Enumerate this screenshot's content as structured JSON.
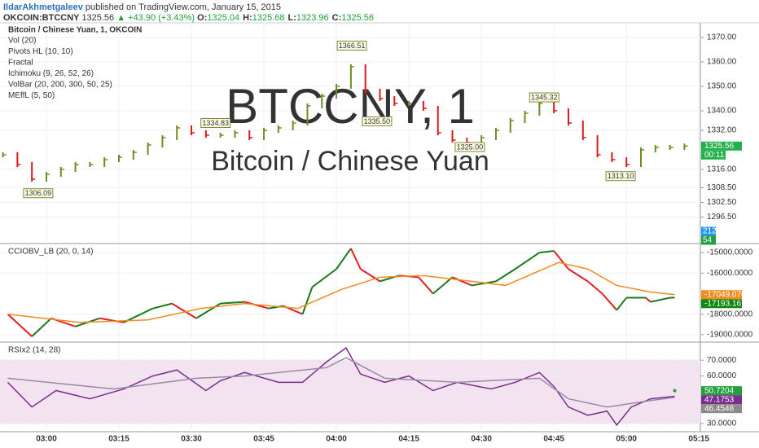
{
  "header": {
    "author": "IldarAkhmetgaleev",
    "published": "published on TradingView.com, January 15, 2015",
    "symbol": "OKCOIN:BTCCNY",
    "price": "1325.56",
    "change": "▲ +43.90 (+3.43%)",
    "ohlc": [
      {
        "label": "O:",
        "value": "1325.04"
      },
      {
        "label": "H:",
        "value": "1325.68"
      },
      {
        "label": "L:",
        "value": "1323.96"
      },
      {
        "label": "C:",
        "value": "1325.56"
      }
    ]
  },
  "chart_data": [
    {
      "type": "bar",
      "title": "Bitcoin / Chinese Yuan, 1, OKCOIN",
      "indicators": [
        "Vol (20)",
        "Pivots HL (10, 10)",
        "Fractal",
        "Ichimoku (9, 26, 52, 26)",
        "VolBar (20, 200, 300, 50, 25)",
        "MEffL (5, 50)"
      ],
      "watermark": [
        "BTCCNY, 1",
        "Bitcoin / Chinese Yuan"
      ],
      "xlim": [
        170.4,
        315.3
      ],
      "ylim": [
        1286,
        1376
      ],
      "yticks": [
        {
          "value": 1370,
          "label": "1370.00"
        },
        {
          "value": 1360,
          "label": "1360.00"
        },
        {
          "value": 1350,
          "label": "1350.00"
        },
        {
          "value": 1340,
          "label": "1340.00"
        },
        {
          "value": 1332,
          "label": "1332.00"
        },
        {
          "value": 1316,
          "label": "1316.00"
        },
        {
          "value": 1308.5,
          "label": "1308.50"
        },
        {
          "value": 1302.5,
          "label": "1302.50"
        },
        {
          "value": 1296.5,
          "label": "1296.50"
        }
      ],
      "xticks": [
        {
          "value": 180,
          "label": "03:00"
        },
        {
          "value": 195,
          "label": "03:15"
        },
        {
          "value": 210,
          "label": "03:30"
        },
        {
          "value": 225,
          "label": "03:45"
        },
        {
          "value": 240,
          "label": "04:00"
        },
        {
          "value": 255,
          "label": "04:15"
        },
        {
          "value": 270,
          "label": "04:30"
        },
        {
          "value": 285,
          "label": "04:45"
        },
        {
          "value": 300,
          "label": "05:00"
        },
        {
          "value": 315,
          "label": "05:15"
        }
      ],
      "series": [
        {
          "up_color": "#6b8e23",
          "down_color": "#d81b1b",
          "x": [
            171,
            174,
            177,
            180,
            183,
            186,
            189,
            192,
            195,
            198,
            201,
            204,
            207,
            210,
            213,
            216,
            219,
            222,
            225,
            228,
            231,
            234,
            237,
            240,
            243,
            246,
            249,
            252,
            255,
            258,
            261,
            264,
            267,
            270,
            273,
            276,
            279,
            282,
            285,
            288,
            291,
            294,
            297,
            300,
            303,
            306,
            309,
            312
          ],
          "values": [
            1322,
            1318,
            1312,
            1314,
            1316,
            1318,
            1318,
            1320,
            1321,
            1323,
            1326,
            1329,
            1333,
            1331,
            1330,
            1330,
            1331,
            1329,
            1332,
            1333,
            1335,
            1342,
            1346,
            1350,
            1358,
            1348,
            1345,
            1343,
            1343,
            1341,
            1331,
            1328,
            1327,
            1329,
            1332,
            1336,
            1339,
            1343,
            1340,
            1335,
            1329,
            1322,
            1320,
            1318,
            1324,
            1325,
            1325,
            1325.56
          ],
          "last_label": "1325.56",
          "last_color": "#22b14c"
        }
      ],
      "annotations": [
        {
          "x": 243.2,
          "value": 1366.51
        },
        {
          "x": 215,
          "value": 1334.83
        },
        {
          "x": 248.4,
          "value": {
            "value": 1335.5,
            "label": "1335.50"
          }
        },
        {
          "x": 267.6,
          "value": {
            "value": 1325,
            "label": "1325.00"
          }
        },
        {
          "x": 283,
          "value": 1345.32
        },
        {
          "x": 298.8,
          "value": {
            "value": 1313.1,
            "label": "1313.10"
          }
        },
        {
          "x": 178.3,
          "value": 1306.09
        }
      ],
      "countdown": "00:11",
      "volume_labels": [
        {
          "value": 212,
          "color": "#2196f3"
        },
        {
          "value": 54,
          "color": "#22a03c"
        }
      ]
    },
    {
      "type": "line",
      "title": "CCIOBV_LB (20, 0, 14)",
      "xlim": [
        170.4,
        315.3
      ],
      "ylim": [
        -19280,
        -14600
      ],
      "yticks": [
        {
          "value": -15000,
          "label": "-15000.0000"
        },
        {
          "value": -16000,
          "label": "-16000.0000"
        },
        {
          "value": -18000,
          "label": "-18000.0000"
        },
        {
          "value": -19000,
          "label": "-19000.0000"
        }
      ],
      "series": [
        {
          "up_color": "#1a7a1a",
          "down_color": "#e02020",
          "x": [
            172,
            177,
            181,
            186,
            191,
            196,
            202,
            206,
            211,
            216,
            221,
            226,
            229,
            233,
            235,
            240,
            243,
            245,
            249,
            253,
            257,
            260,
            264,
            268,
            273,
            277,
            282,
            285,
            288,
            292,
            295,
            298,
            300,
            304,
            305,
            309,
            310
          ],
          "values": [
            -18000,
            -19080,
            -18200,
            -18600,
            -18200,
            -18400,
            -17720,
            -17480,
            -18200,
            -17480,
            -17400,
            -17720,
            -17600,
            -18000,
            -16680,
            -15800,
            -14800,
            -15800,
            -16400,
            -16120,
            -16200,
            -17000,
            -16200,
            -16600,
            -16400,
            -15800,
            -15000,
            -14920,
            -15800,
            -16400,
            -17000,
            -17800,
            -17200,
            -17200,
            -17400,
            -17200,
            -17193.167
          ],
          "last_label": "-17193.1670",
          "last_color": "#118811"
        },
        {
          "color": "#f28a1e",
          "x": [
            172,
            187,
            201,
            212,
            221,
            232,
            241,
            249,
            258,
            268,
            275,
            286,
            292,
            298,
            305,
            310
          ],
          "values": [
            -18000,
            -18400,
            -18280,
            -17720,
            -17480,
            -17720,
            -16800,
            -16200,
            -16120,
            -16400,
            -16600,
            -15480,
            -15800,
            -16600,
            -16920,
            -17049.0706
          ],
          "last_label": "-17049.0706",
          "last_color": "#f28a1e"
        }
      ]
    },
    {
      "type": "line",
      "title": "RSIx2 (14, 28)",
      "xlim": [
        170.4,
        315.3
      ],
      "ylim": [
        24.8,
        80.9
      ],
      "band": [
        30,
        70
      ],
      "yticks": [
        {
          "value": 70,
          "label": "70.0000"
        },
        {
          "value": 60,
          "label": "60.0000"
        },
        {
          "value": 30,
          "label": "30.0000"
        }
      ],
      "series": [
        {
          "color": "#7b2d8e",
          "x": [
            172,
            177,
            182,
            189,
            196,
            202,
            207,
            213,
            216,
            221,
            228,
            233,
            238,
            242,
            245,
            250,
            255,
            260,
            265,
            272,
            277,
            282,
            285,
            288,
            292,
            296,
            298,
            301,
            305,
            310
          ],
          "values": [
            56,
            40.4,
            50.8,
            45.6,
            51.8,
            60,
            63.8,
            50.8,
            57,
            62.2,
            56,
            56,
            69,
            77.8,
            61.2,
            56,
            60,
            50.8,
            56,
            51.8,
            56,
            62.2,
            53.4,
            40.4,
            35.2,
            37.8,
            29,
            40.4,
            45.6,
            47.1753
          ],
          "last_label": "47.1753",
          "last_color": "#7b2d8e"
        },
        {
          "color": "#9a8aa0",
          "x": [
            172,
            194,
            211,
            221,
            238,
            242,
            250,
            265,
            282,
            288,
            296,
            305,
            310
          ],
          "values": [
            58.6,
            51.8,
            58.6,
            60,
            65.3,
            71.6,
            58.6,
            56,
            58.6,
            45.6,
            40.4,
            44.5,
            46.4548
          ],
          "last_label": "46.4548",
          "last_color": "#8a8a8a"
        },
        {
          "color": "#22a03c",
          "x": [
            310
          ],
          "values": [
            50.7204
          ],
          "last_label": "50.7204",
          "last_color": "#22a03c"
        }
      ]
    }
  ]
}
